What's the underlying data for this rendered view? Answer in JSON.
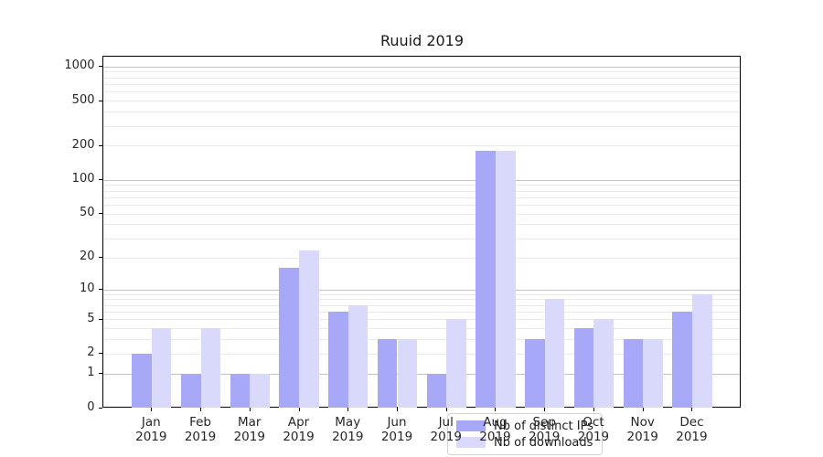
{
  "chart_data": {
    "type": "bar",
    "title": "Ruuid 2019",
    "months": [
      "Jan",
      "Feb",
      "Mar",
      "Apr",
      "May",
      "Jun",
      "Jul",
      "Aug",
      "Sep",
      "Oct",
      "Nov",
      "Dec"
    ],
    "year_label": "2019",
    "series": [
      {
        "name": "Nb of distinct IPs",
        "color": "#a8a8f8",
        "values": [
          2,
          1,
          1,
          16,
          6,
          3,
          1,
          180,
          3,
          4,
          3,
          6
        ]
      },
      {
        "name": "Nb of downloads",
        "color": "#d9d9fb",
        "values": [
          4,
          4,
          1,
          23,
          7,
          3,
          5,
          180,
          8,
          5,
          3,
          9
        ]
      }
    ],
    "xlabel": "",
    "ylabel": "",
    "yscale": "log1p",
    "ylim": [
      0,
      1000
    ],
    "y_tick_labels": [
      "0",
      "1",
      "2",
      "5",
      "10",
      "20",
      "50",
      "100",
      "200",
      "500",
      "1000"
    ],
    "y_tick_values": [
      0,
      1,
      2,
      5,
      10,
      20,
      50,
      100,
      200,
      500,
      1000
    ],
    "y_major_gridline_values": [
      1,
      10,
      100,
      1000
    ],
    "y_minor_gridline_values": [
      2,
      3,
      4,
      5,
      6,
      7,
      8,
      9,
      20,
      30,
      40,
      50,
      60,
      70,
      80,
      90,
      200,
      300,
      400,
      500,
      600,
      700,
      800,
      900
    ],
    "grid": "both",
    "legend_position": "lower center",
    "colors": {
      "bar_distinct_ips": "#a8a8f8",
      "bar_downloads": "#d9d9fb",
      "major_grid": "#c3c3c3",
      "minor_grid": "#eaeaea",
      "axis_line": "#000000",
      "tick_text": "#262626"
    }
  }
}
